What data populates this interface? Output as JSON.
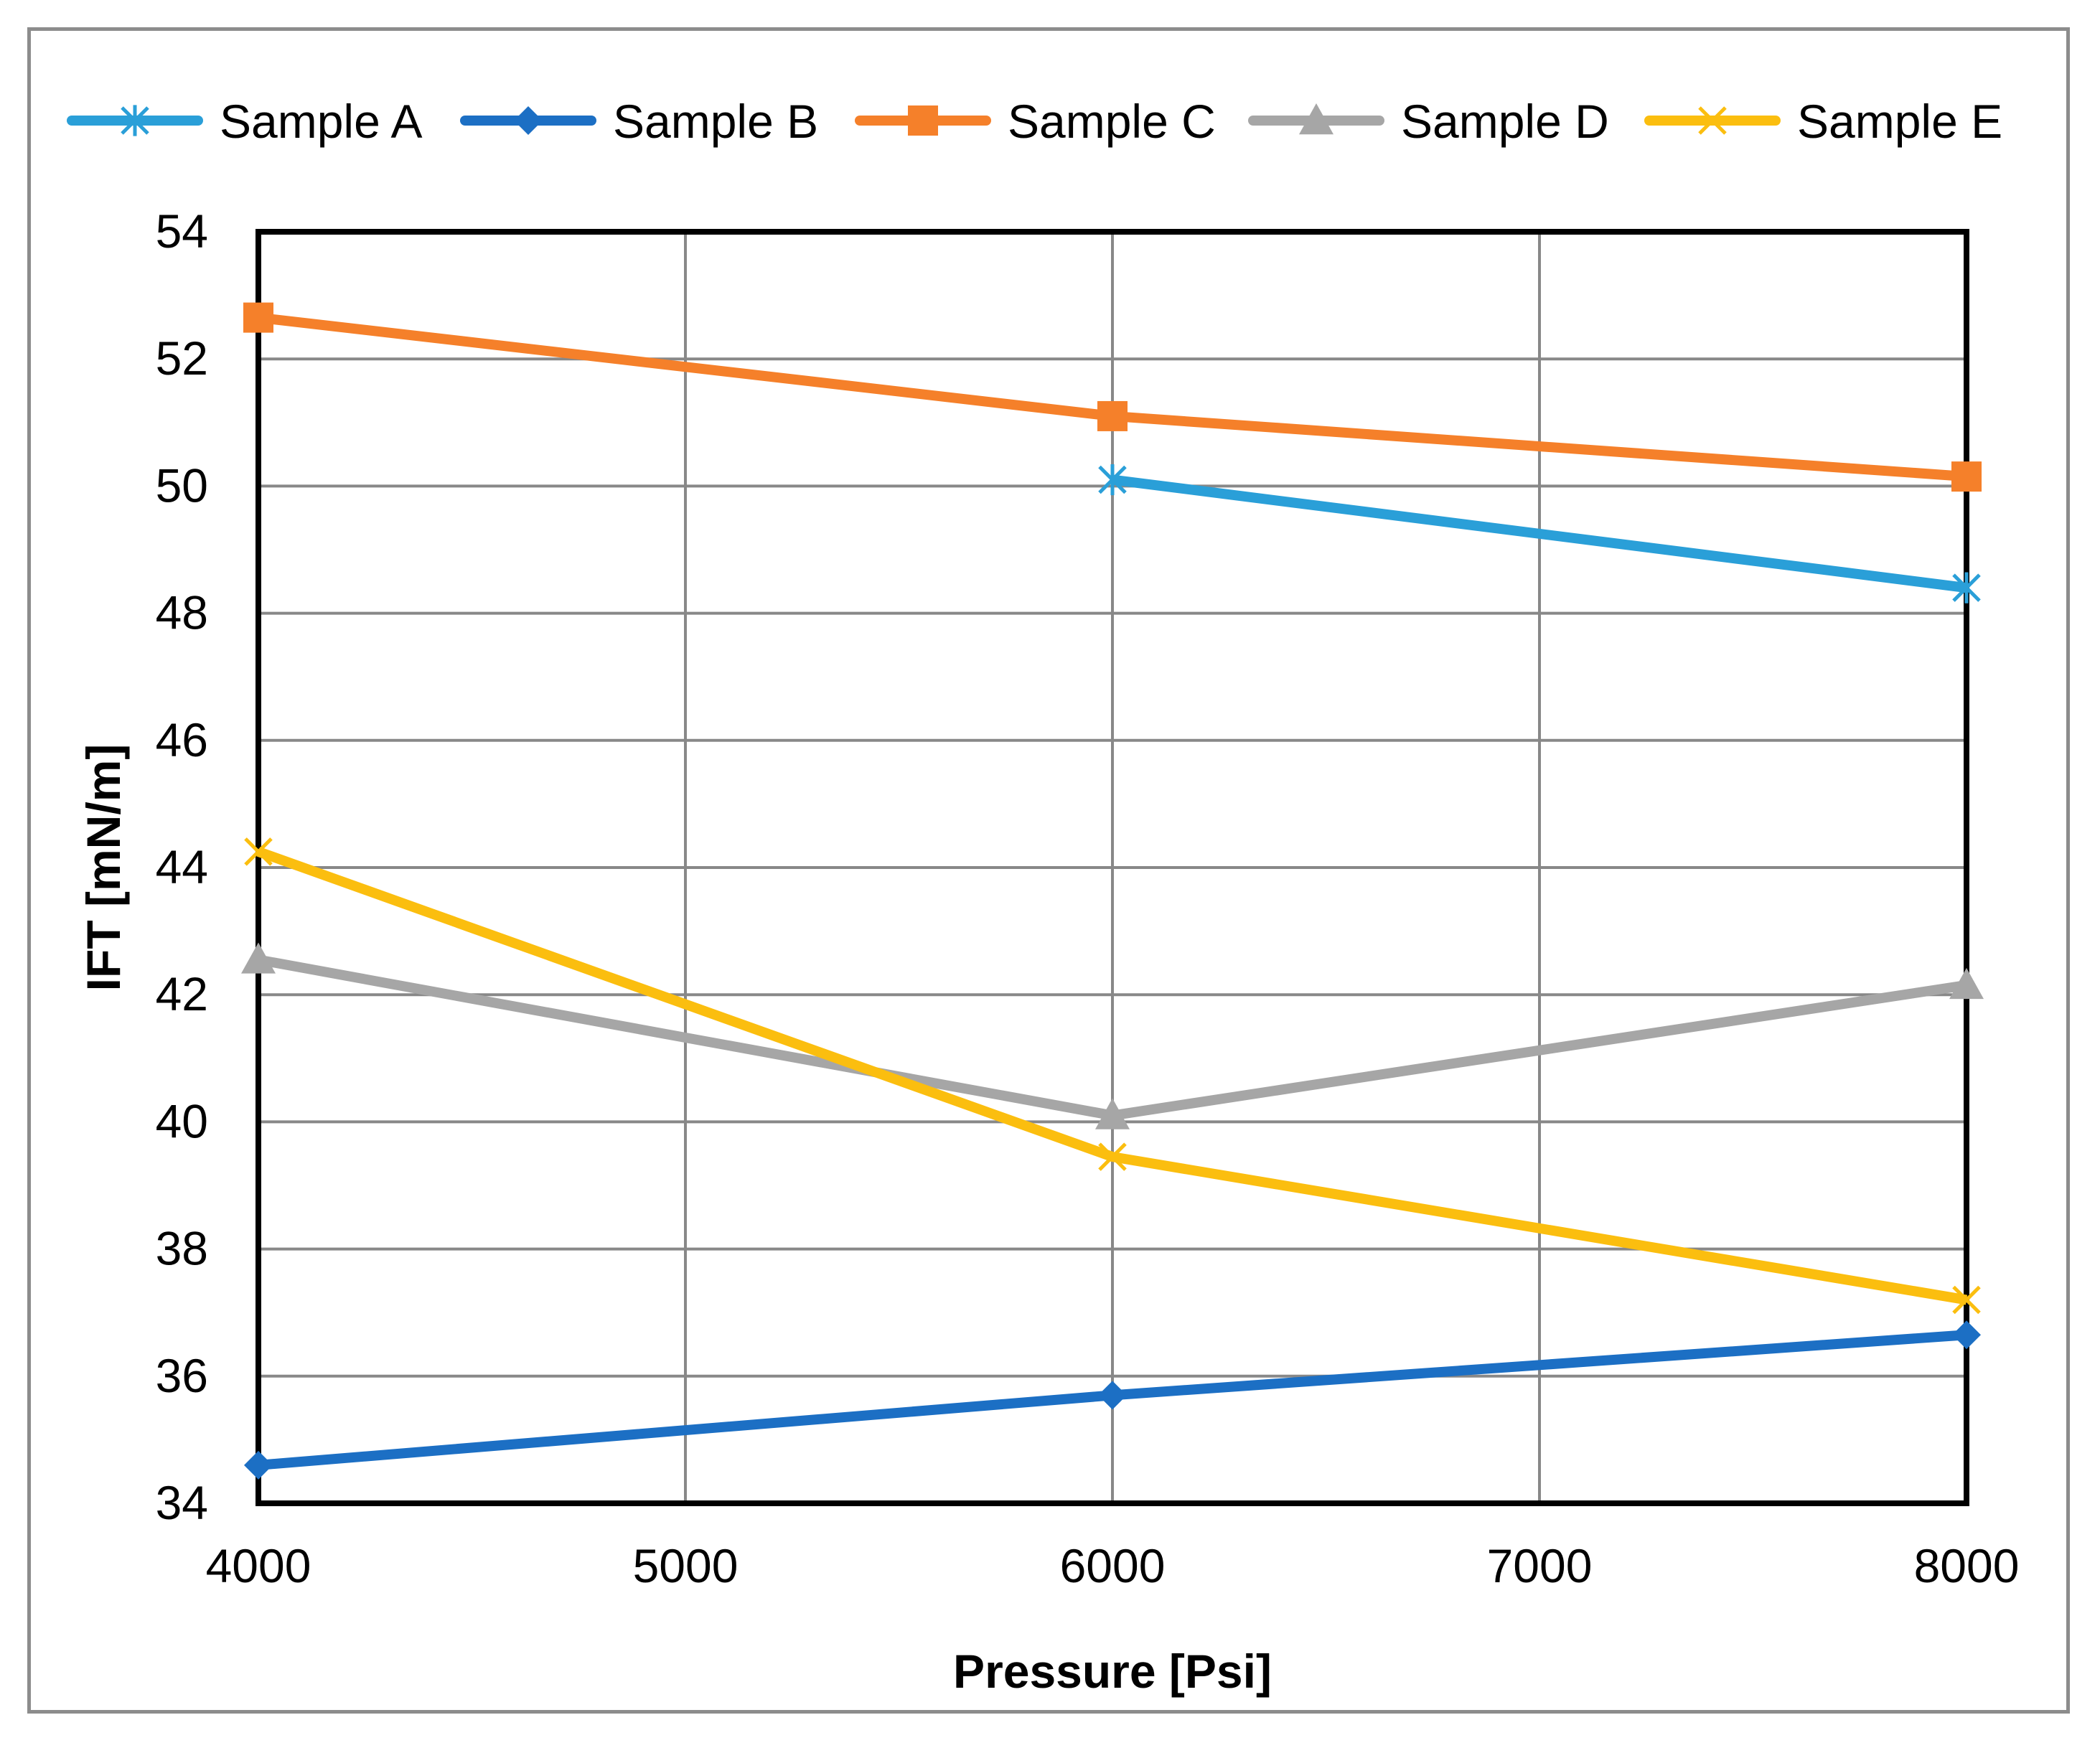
{
  "chart_data": {
    "type": "line",
    "xlabel": "Pressure [Psi]",
    "ylabel": "IFT [mN/m]",
    "xlim": [
      4000,
      8000
    ],
    "ylim": [
      34,
      54
    ],
    "xticks": [
      4000,
      5000,
      6000,
      7000,
      8000
    ],
    "yticks": [
      34,
      36,
      38,
      40,
      42,
      44,
      46,
      48,
      50,
      52,
      54
    ],
    "grid": true,
    "legend_position": "top",
    "series": [
      {
        "name": "Sample A",
        "color": "#2a9fd8",
        "marker": "asterisk",
        "points": [
          [
            6000,
            50.1
          ],
          [
            8000,
            48.4
          ]
        ]
      },
      {
        "name": "Sample B",
        "color": "#1c6fc4",
        "marker": "diamond",
        "points": [
          [
            4000,
            34.6
          ],
          [
            6000,
            35.7
          ],
          [
            8000,
            36.65
          ]
        ]
      },
      {
        "name": "Sample C",
        "color": "#f5802a",
        "marker": "square",
        "points": [
          [
            4000,
            52.65
          ],
          [
            6000,
            51.1
          ],
          [
            8000,
            50.15
          ]
        ]
      },
      {
        "name": "Sample D",
        "color": "#a6a6a6",
        "marker": "triangle",
        "points": [
          [
            4000,
            42.55
          ],
          [
            6000,
            40.1
          ],
          [
            8000,
            42.15
          ]
        ]
      },
      {
        "name": "Sample E",
        "color": "#fbbe0f",
        "marker": "cross",
        "points": [
          [
            4000,
            44.25
          ],
          [
            6000,
            39.45
          ],
          [
            8000,
            37.2
          ]
        ]
      }
    ]
  }
}
